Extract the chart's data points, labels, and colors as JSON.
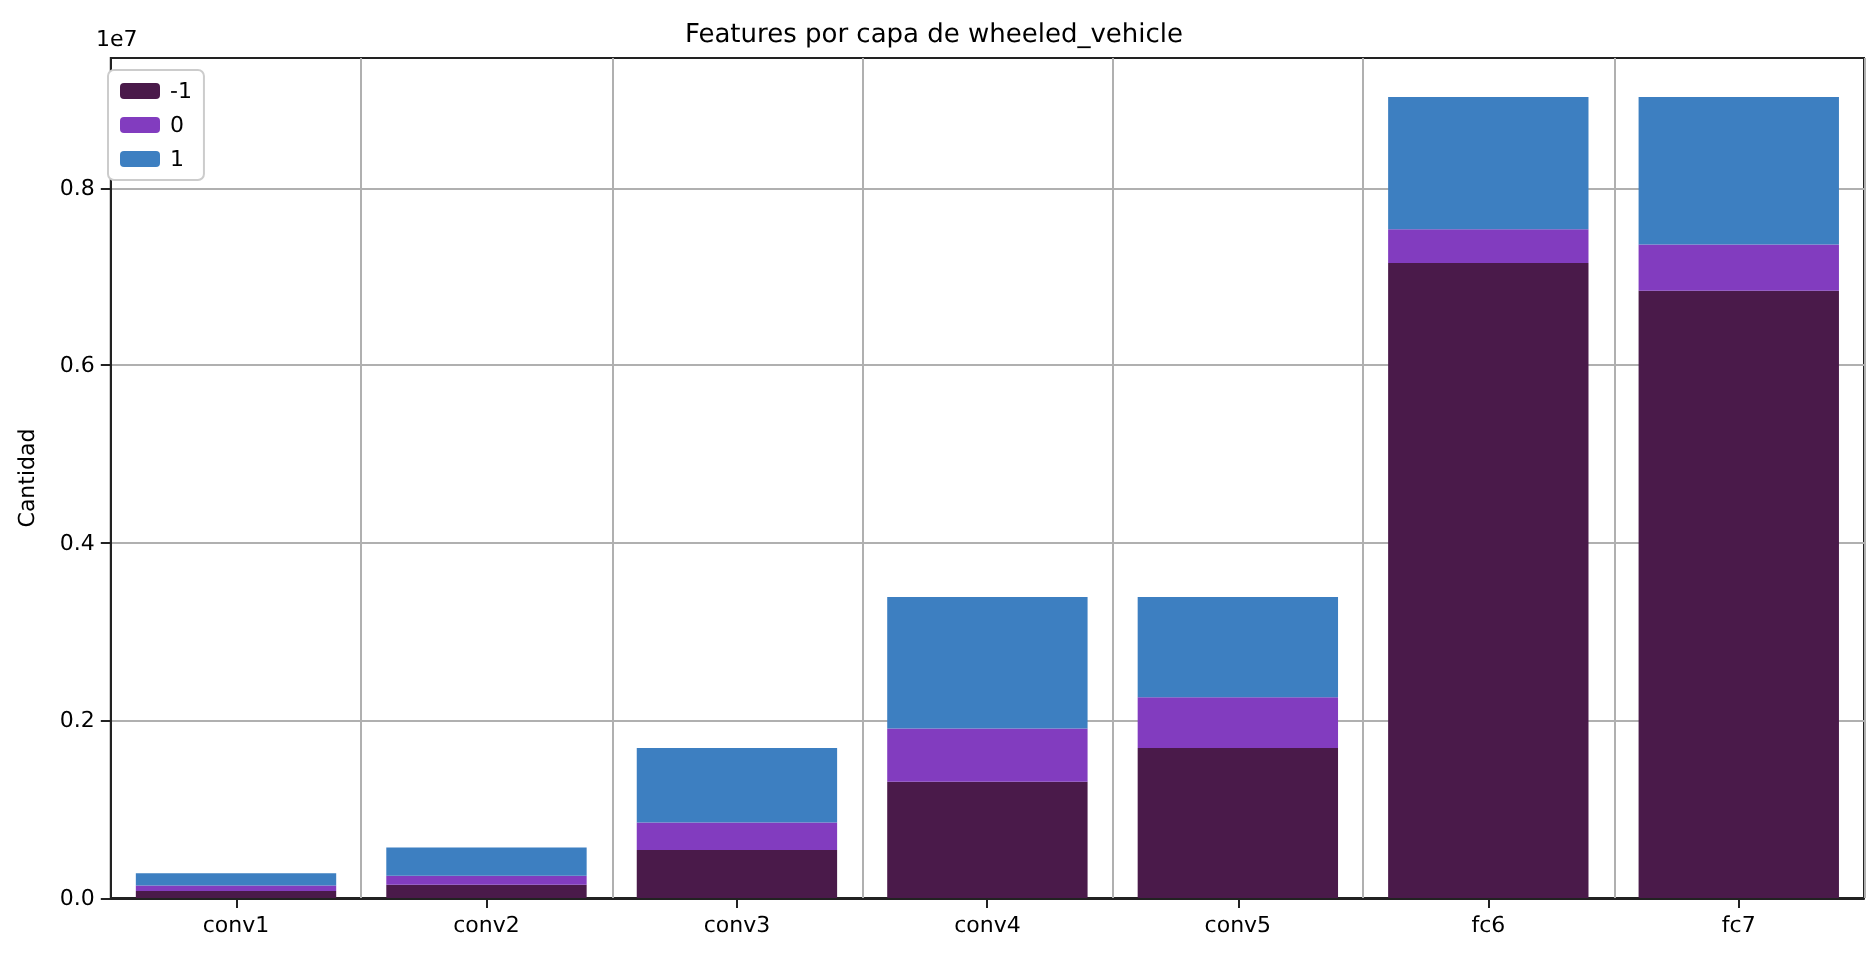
{
  "chart_data": {
    "type": "bar",
    "title": "Features por capa de wheeled_vehicle",
    "ylabel": "Cantidad",
    "annotations": [
      "1e7"
    ],
    "categories": [
      "conv1",
      "conv2",
      "conv3",
      "conv4",
      "conv5",
      "fc6",
      "fc7"
    ],
    "stacked": true,
    "series": [
      {
        "name": "-1",
        "color": "#4a1a4a",
        "values": [
          0.008,
          0.015,
          0.054,
          0.131,
          0.169,
          0.715,
          0.684
        ]
      },
      {
        "name": "0",
        "color": "#823cbf",
        "values": [
          0.006,
          0.01,
          0.031,
          0.06,
          0.057,
          0.038,
          0.052
        ]
      },
      {
        "name": "1",
        "color": "#3d7fc1",
        "values": [
          0.014,
          0.032,
          0.084,
          0.148,
          0.113,
          0.149,
          0.166
        ]
      }
    ],
    "ylim": [
      0,
      0.946
    ],
    "yticks": [
      {
        "value": 0,
        "label": "0.0"
      },
      0.2,
      0.4,
      0.6,
      0.8
    ],
    "grid": true,
    "legend": "top left"
  }
}
